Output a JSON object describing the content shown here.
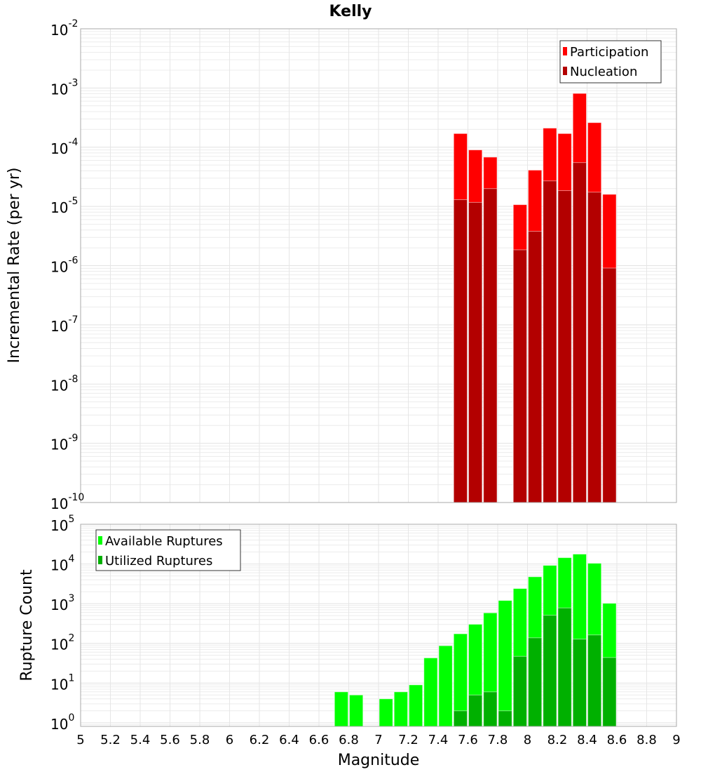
{
  "chart_data": [
    {
      "type": "bar",
      "title": "Kelly",
      "xlabel": "Magnitude",
      "ylabel": "Incremental Rate (per yr)",
      "yscale": "log",
      "xlim": [
        5,
        9
      ],
      "ylim": [
        1e-10,
        0.01
      ],
      "ytick_exponents": [
        -2,
        -3,
        -4,
        -5,
        -6,
        -7,
        -8,
        -9,
        -10
      ],
      "grid": true,
      "legend_position": "top-right",
      "bar_width": 0.1,
      "x": [
        7.55,
        7.65,
        7.75,
        7.95,
        8.05,
        8.15,
        8.25,
        8.35,
        8.45,
        8.55
      ],
      "series": [
        {
          "name": "Participation",
          "color": "#ff0000",
          "values": [
            0.00017,
            9e-05,
            6.8e-05,
            1.07e-05,
            4.1e-05,
            0.00021,
            0.00017,
            0.00081,
            0.00026,
            1.6e-05
          ]
        },
        {
          "name": "Nucleation",
          "color": "#b30000",
          "values": [
            1.3e-05,
            1.17e-05,
            2e-05,
            1.85e-06,
            3.8e-06,
            2.7e-05,
            1.85e-05,
            5.5e-05,
            1.74e-05,
            9.1e-07
          ]
        }
      ]
    },
    {
      "type": "bar",
      "xlabel": "Magnitude",
      "ylabel": "Rupture Count",
      "yscale": "log",
      "xlim": [
        5,
        9
      ],
      "ylim": [
        0.81,
        100000.0
      ],
      "ytick_exponents": [
        5,
        4,
        3,
        2,
        1,
        0
      ],
      "xticks": [
        "5",
        "5.2",
        "5.4",
        "5.6",
        "5.8",
        "6",
        "6.2",
        "6.4",
        "6.6",
        "6.8",
        "7",
        "7.2",
        "7.4",
        "7.6",
        "7.8",
        "8",
        "8.2",
        "8.4",
        "8.6",
        "8.8",
        "9"
      ],
      "grid": true,
      "legend_position": "top-left",
      "bar_width": 0.1,
      "x": [
        6.75,
        6.85,
        7.05,
        7.15,
        7.25,
        7.35,
        7.45,
        7.55,
        7.65,
        7.75,
        7.85,
        7.95,
        8.05,
        8.15,
        8.25,
        8.35,
        8.45,
        8.55
      ],
      "series": [
        {
          "name": "Available Ruptures",
          "color": "#00ff00",
          "values": [
            6,
            5,
            4,
            6,
            9,
            43,
            87,
            174,
            302,
            586,
            1200,
            2400,
            4750,
            9200,
            14400,
            17700,
            10400,
            1020
          ]
        },
        {
          "name": "Utilized Ruptures",
          "color": "#00b000",
          "values": [
            0,
            0,
            0,
            0,
            0,
            0,
            0,
            2,
            5,
            6,
            2,
            47,
            138,
            510,
            780,
            128,
            163,
            44
          ]
        }
      ]
    }
  ]
}
